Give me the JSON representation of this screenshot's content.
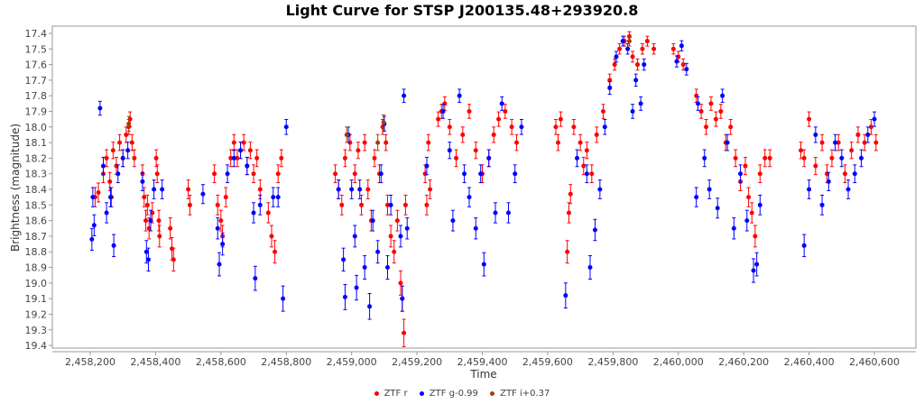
{
  "chart_data": {
    "type": "scatter",
    "title": "Light Curve for STSP J200135.48+293920.8",
    "xlabel": "Time",
    "ylabel": "Brightness (magnitude)",
    "xlim": [
      2458084,
      2460727
    ],
    "ylim": [
      17.354,
      19.417
    ],
    "y_inverted": true,
    "grid": false,
    "legend_position": "bottom",
    "xticks": [
      2458200,
      2458400,
      2458600,
      2458800,
      2459000,
      2459200,
      2459400,
      2459600,
      2459800,
      2460000,
      2460200,
      2460400,
      2460600
    ],
    "xtick_labels": [
      "2,458,200",
      "2,458,400",
      "2,458,600",
      "2,458,800",
      "2,459,000",
      "2,459,200",
      "2,459,400",
      "2,459,600",
      "2,459,800",
      "2,460,000",
      "2,460,200",
      "2,460,400",
      "2,460,600"
    ],
    "yticks": [
      17.4,
      17.5,
      17.6,
      17.7,
      17.8,
      17.9,
      18.0,
      18.1,
      18.2,
      18.3,
      18.4,
      18.5,
      18.6,
      18.7,
      18.8,
      18.9,
      19.0,
      19.1,
      19.2,
      19.3,
      19.4
    ],
    "ytick_labels": [
      "17.4",
      "17.5",
      "17.6",
      "17.7",
      "17.8",
      "17.9",
      "18.0",
      "18.1",
      "18.2",
      "18.3",
      "18.4",
      "18.5",
      "18.6",
      "18.7",
      "18.8",
      "18.9",
      "19.0",
      "19.1",
      "19.2",
      "19.3",
      "19.4"
    ],
    "series": [
      {
        "name": "ZTF r",
        "color": "#ff0000",
        "points": [
          [
            2458215,
            18.45
          ],
          [
            2458225,
            18.42
          ],
          [
            2458240,
            18.3
          ],
          [
            2458250,
            18.2
          ],
          [
            2458260,
            18.35
          ],
          [
            2458265,
            18.45
          ],
          [
            2458270,
            18.15
          ],
          [
            2458280,
            18.25
          ],
          [
            2458290,
            18.1
          ],
          [
            2458300,
            18.2
          ],
          [
            2458310,
            18.05
          ],
          [
            2458318,
            18.0
          ],
          [
            2458322,
            17.95
          ],
          [
            2458328,
            18.1
          ],
          [
            2458335,
            18.2
          ],
          [
            2458360,
            18.3
          ],
          [
            2458365,
            18.45
          ],
          [
            2458370,
            18.6
          ],
          [
            2458375,
            18.5
          ],
          [
            2458380,
            18.65
          ],
          [
            2458390,
            18.55
          ],
          [
            2458402,
            18.2
          ],
          [
            2458405,
            18.3
          ],
          [
            2458410,
            18.6
          ],
          [
            2458412,
            18.7
          ],
          [
            2458445,
            18.65
          ],
          [
            2458450,
            18.78
          ],
          [
            2458455,
            18.85
          ],
          [
            2458500,
            18.4
          ],
          [
            2458505,
            18.5
          ],
          [
            2458580,
            18.3
          ],
          [
            2458590,
            18.5
          ],
          [
            2458600,
            18.6
          ],
          [
            2458605,
            18.7
          ],
          [
            2458615,
            18.45
          ],
          [
            2458630,
            18.2
          ],
          [
            2458640,
            18.1
          ],
          [
            2458650,
            18.2
          ],
          [
            2458660,
            18.15
          ],
          [
            2458670,
            18.1
          ],
          [
            2458680,
            18.25
          ],
          [
            2458690,
            18.15
          ],
          [
            2458700,
            18.3
          ],
          [
            2458710,
            18.2
          ],
          [
            2458720,
            18.4
          ],
          [
            2458745,
            18.55
          ],
          [
            2458755,
            18.7
          ],
          [
            2458765,
            18.8
          ],
          [
            2458775,
            18.3
          ],
          [
            2458785,
            18.2
          ],
          [
            2458950,
            18.3
          ],
          [
            2458960,
            18.4
          ],
          [
            2458970,
            18.5
          ],
          [
            2458980,
            18.2
          ],
          [
            2458995,
            18.1
          ],
          [
            2459010,
            18.3
          ],
          [
            2459020,
            18.15
          ],
          [
            2459030,
            18.5
          ],
          [
            2459040,
            18.1
          ],
          [
            2459050,
            18.4
          ],
          [
            2459060,
            18.6
          ],
          [
            2459070,
            18.2
          ],
          [
            2459085,
            18.3
          ],
          [
            2459095,
            18.0
          ],
          [
            2459105,
            18.1
          ],
          [
            2459110,
            18.5
          ],
          [
            2459120,
            18.7
          ],
          [
            2459130,
            18.8
          ],
          [
            2459140,
            18.6
          ],
          [
            2459150,
            19.0
          ],
          [
            2459155,
            19.1
          ],
          [
            2459160,
            19.32
          ],
          [
            2459165,
            18.5
          ],
          [
            2459225,
            18.3
          ],
          [
            2459230,
            18.5
          ],
          [
            2459235,
            18.1
          ],
          [
            2459240,
            18.4
          ],
          [
            2459265,
            17.95
          ],
          [
            2459275,
            17.9
          ],
          [
            2459285,
            17.85
          ],
          [
            2459300,
            18.0
          ],
          [
            2459320,
            18.2
          ],
          [
            2459340,
            18.05
          ],
          [
            2459360,
            17.9
          ],
          [
            2459380,
            18.15
          ],
          [
            2459400,
            18.3
          ],
          [
            2459420,
            18.2
          ],
          [
            2459435,
            18.05
          ],
          [
            2459450,
            17.95
          ],
          [
            2459470,
            17.9
          ],
          [
            2459490,
            18.0
          ],
          [
            2459505,
            18.1
          ],
          [
            2459625,
            18.0
          ],
          [
            2459632,
            18.1
          ],
          [
            2459640,
            17.95
          ],
          [
            2459660,
            18.8
          ],
          [
            2459665,
            18.55
          ],
          [
            2459670,
            18.43
          ],
          [
            2459680,
            18.0
          ],
          [
            2459700,
            18.1
          ],
          [
            2459710,
            18.25
          ],
          [
            2459720,
            18.15
          ],
          [
            2459735,
            18.3
          ],
          [
            2459750,
            18.05
          ],
          [
            2459770,
            17.9
          ],
          [
            2459790,
            17.7
          ],
          [
            2459805,
            17.6
          ],
          [
            2459820,
            17.5
          ],
          [
            2459835,
            17.45
          ],
          [
            2459850,
            17.42
          ],
          [
            2459860,
            17.55
          ],
          [
            2459875,
            17.6
          ],
          [
            2459890,
            17.5
          ],
          [
            2459905,
            17.45
          ],
          [
            2459925,
            17.5
          ],
          [
            2459985,
            17.5
          ],
          [
            2460000,
            17.55
          ],
          [
            2460015,
            17.6
          ],
          [
            2460055,
            17.8
          ],
          [
            2460070,
            17.9
          ],
          [
            2460085,
            18.0
          ],
          [
            2460100,
            17.85
          ],
          [
            2460115,
            17.95
          ],
          [
            2460130,
            17.9
          ],
          [
            2460145,
            18.1
          ],
          [
            2460160,
            18.0
          ],
          [
            2460175,
            18.2
          ],
          [
            2460190,
            18.35
          ],
          [
            2460205,
            18.25
          ],
          [
            2460215,
            18.45
          ],
          [
            2460225,
            18.55
          ],
          [
            2460235,
            18.7
          ],
          [
            2460250,
            18.3
          ],
          [
            2460265,
            18.2
          ],
          [
            2460280,
            18.2
          ],
          [
            2460375,
            18.15
          ],
          [
            2460385,
            18.2
          ],
          [
            2460400,
            17.95
          ],
          [
            2460420,
            18.25
          ],
          [
            2460440,
            18.1
          ],
          [
            2460455,
            18.3
          ],
          [
            2460470,
            18.2
          ],
          [
            2460490,
            18.1
          ],
          [
            2460510,
            18.3
          ],
          [
            2460530,
            18.15
          ],
          [
            2460550,
            18.05
          ],
          [
            2460570,
            18.1
          ],
          [
            2460590,
            18.0
          ],
          [
            2460605,
            18.1
          ]
        ]
      },
      {
        "name": "ZTF g-0.99",
        "color": "#0000ff",
        "points": [
          [
            2458205,
            18.72
          ],
          [
            2458208,
            18.45
          ],
          [
            2458212,
            18.63
          ],
          [
            2458230,
            17.88
          ],
          [
            2458240,
            18.25
          ],
          [
            2458250,
            18.55
          ],
          [
            2458262,
            18.45
          ],
          [
            2458272,
            18.76
          ],
          [
            2458285,
            18.3
          ],
          [
            2458300,
            18.2
          ],
          [
            2458315,
            18.15
          ],
          [
            2458360,
            18.35
          ],
          [
            2458372,
            18.8
          ],
          [
            2458378,
            18.85
          ],
          [
            2458385,
            18.6
          ],
          [
            2458395,
            18.4
          ],
          [
            2458420,
            18.4
          ],
          [
            2458545,
            18.43
          ],
          [
            2458590,
            18.65
          ],
          [
            2458595,
            18.88
          ],
          [
            2458605,
            18.75
          ],
          [
            2458620,
            18.3
          ],
          [
            2458640,
            18.2
          ],
          [
            2458660,
            18.15
          ],
          [
            2458680,
            18.25
          ],
          [
            2458700,
            18.55
          ],
          [
            2458705,
            18.97
          ],
          [
            2458720,
            18.5
          ],
          [
            2458760,
            18.45
          ],
          [
            2458775,
            18.45
          ],
          [
            2458790,
            19.1
          ],
          [
            2458800,
            18.0
          ],
          [
            2458960,
            18.4
          ],
          [
            2458975,
            18.85
          ],
          [
            2458980,
            19.09
          ],
          [
            2458990,
            18.05
          ],
          [
            2459000,
            18.4
          ],
          [
            2459010,
            18.7
          ],
          [
            2459015,
            19.03
          ],
          [
            2459025,
            18.4
          ],
          [
            2459040,
            18.9
          ],
          [
            2459055,
            19.15
          ],
          [
            2459065,
            18.6
          ],
          [
            2459080,
            18.8
          ],
          [
            2459090,
            18.3
          ],
          [
            2459100,
            17.98
          ],
          [
            2459110,
            18.9
          ],
          [
            2459120,
            18.5
          ],
          [
            2459150,
            18.7
          ],
          [
            2459155,
            19.1
          ],
          [
            2459160,
            17.8
          ],
          [
            2459170,
            18.65
          ],
          [
            2459230,
            18.25
          ],
          [
            2459280,
            17.9
          ],
          [
            2459300,
            18.15
          ],
          [
            2459310,
            18.6
          ],
          [
            2459330,
            17.8
          ],
          [
            2459345,
            18.3
          ],
          [
            2459360,
            18.45
          ],
          [
            2459380,
            18.65
          ],
          [
            2459395,
            18.3
          ],
          [
            2459405,
            18.88
          ],
          [
            2459420,
            18.2
          ],
          [
            2459440,
            18.55
          ],
          [
            2459460,
            17.85
          ],
          [
            2459480,
            18.55
          ],
          [
            2459500,
            18.3
          ],
          [
            2459520,
            18.0
          ],
          [
            2459655,
            19.08
          ],
          [
            2459690,
            18.2
          ],
          [
            2459720,
            18.3
          ],
          [
            2459730,
            18.9
          ],
          [
            2459745,
            18.66
          ],
          [
            2459760,
            18.4
          ],
          [
            2459775,
            18.0
          ],
          [
            2459790,
            17.75
          ],
          [
            2459810,
            17.55
          ],
          [
            2459830,
            17.45
          ],
          [
            2459845,
            17.5
          ],
          [
            2459860,
            17.9
          ],
          [
            2459870,
            17.7
          ],
          [
            2459885,
            17.85
          ],
          [
            2459895,
            17.6
          ],
          [
            2459995,
            17.58
          ],
          [
            2460010,
            17.48
          ],
          [
            2460025,
            17.63
          ],
          [
            2460055,
            18.45
          ],
          [
            2460060,
            17.85
          ],
          [
            2460080,
            18.2
          ],
          [
            2460095,
            18.4
          ],
          [
            2460120,
            18.52
          ],
          [
            2460135,
            17.8
          ],
          [
            2460150,
            18.1
          ],
          [
            2460170,
            18.65
          ],
          [
            2460190,
            18.3
          ],
          [
            2460210,
            18.6
          ],
          [
            2460230,
            18.92
          ],
          [
            2460240,
            18.88
          ],
          [
            2460250,
            18.5
          ],
          [
            2460385,
            18.76
          ],
          [
            2460400,
            18.4
          ],
          [
            2460420,
            18.05
          ],
          [
            2460440,
            18.5
          ],
          [
            2460460,
            18.35
          ],
          [
            2460480,
            18.1
          ],
          [
            2460500,
            18.2
          ],
          [
            2460520,
            18.4
          ],
          [
            2460540,
            18.3
          ],
          [
            2460560,
            18.2
          ],
          [
            2460580,
            18.05
          ],
          [
            2460600,
            17.95
          ]
        ]
      },
      {
        "name": "ZTF i+0.37",
        "color": "#a0400a",
        "points": [
          [
            2458318,
            17.98
          ],
          [
            2458985,
            18.05
          ],
          [
            2459080,
            18.1
          ],
          [
            2459098,
            17.97
          ],
          [
            2459850,
            17.45
          ]
        ]
      }
    ]
  },
  "legend": [
    {
      "label": "ZTF r",
      "color": "#ff0000"
    },
    {
      "label": "ZTF g-0.99",
      "color": "#0000ff"
    },
    {
      "label": "ZTF i+0.37",
      "color": "#a0400a"
    }
  ]
}
